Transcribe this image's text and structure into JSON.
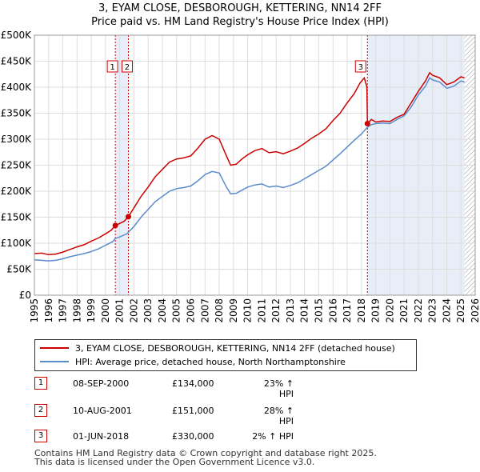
{
  "title_line1": "3, EYAM CLOSE, DESBOROUGH, KETTERING, NN14 2FF",
  "title_line2": "Price paid vs. HM Land Registry's House Price Index (HPI)",
  "colors": {
    "property": "#cc0000",
    "hpi": "#5b8ccc",
    "shade": "#e8eef8",
    "grid": "#dddddd",
    "marker_line": "#cc0000"
  },
  "chart_data": {
    "type": "line",
    "title": "",
    "xlabel": "",
    "ylabel": "",
    "xlim": [
      1995,
      2026
    ],
    "ylim": [
      0,
      500000
    ],
    "x_ticks": [
      "1995",
      "1996",
      "1997",
      "1998",
      "1999",
      "2000",
      "2001",
      "2002",
      "2003",
      "2004",
      "2005",
      "2006",
      "2007",
      "2008",
      "2009",
      "2010",
      "2011",
      "2012",
      "2013",
      "2014",
      "2015",
      "2016",
      "2017",
      "2018",
      "2019",
      "2020",
      "2021",
      "2022",
      "2023",
      "2024",
      "2025",
      "2026"
    ],
    "y_ticks": [
      {
        "value": 0,
        "label": "£0"
      },
      {
        "value": 50000,
        "label": "£50K"
      },
      {
        "value": 100000,
        "label": "£100K"
      },
      {
        "value": 150000,
        "label": "£150K"
      },
      {
        "value": 200000,
        "label": "£200K"
      },
      {
        "value": 250000,
        "label": "£250K"
      },
      {
        "value": 300000,
        "label": "£300K"
      },
      {
        "value": 350000,
        "label": "£350K"
      },
      {
        "value": 400000,
        "label": "£400K"
      },
      {
        "value": 450000,
        "label": "£450K"
      },
      {
        "value": 500000,
        "label": "£500K"
      }
    ],
    "grid": true,
    "shaded_spans": [
      [
        2000.69,
        2001.61
      ],
      [
        2018.42,
        2025.25
      ]
    ],
    "hatched_span": [
      2025.25,
      2026
    ],
    "series": [
      {
        "name": "3, EYAM CLOSE, DESBOROUGH, KETTERING, NN14 2FF (detached house)",
        "color": "#cc0000",
        "points": [
          [
            1995.0,
            80000
          ],
          [
            1995.5,
            81000
          ],
          [
            1996.0,
            78000
          ],
          [
            1996.5,
            79000
          ],
          [
            1997.0,
            83000
          ],
          [
            1997.5,
            88000
          ],
          [
            1998.0,
            93000
          ],
          [
            1998.5,
            97000
          ],
          [
            1999.0,
            104000
          ],
          [
            1999.5,
            110000
          ],
          [
            2000.0,
            118000
          ],
          [
            2000.4,
            125000
          ],
          [
            2000.69,
            134000
          ],
          [
            2001.0,
            138000
          ],
          [
            2001.3,
            142000
          ],
          [
            2001.61,
            151000
          ],
          [
            2002.0,
            168000
          ],
          [
            2002.5,
            190000
          ],
          [
            2003.0,
            208000
          ],
          [
            2003.5,
            228000
          ],
          [
            2004.0,
            242000
          ],
          [
            2004.5,
            256000
          ],
          [
            2005.0,
            262000
          ],
          [
            2005.5,
            264000
          ],
          [
            2006.0,
            268000
          ],
          [
            2006.5,
            283000
          ],
          [
            2007.0,
            300000
          ],
          [
            2007.5,
            307000
          ],
          [
            2008.0,
            300000
          ],
          [
            2008.5,
            268000
          ],
          [
            2008.8,
            250000
          ],
          [
            2009.2,
            252000
          ],
          [
            2009.6,
            262000
          ],
          [
            2010.0,
            270000
          ],
          [
            2010.5,
            278000
          ],
          [
            2011.0,
            282000
          ],
          [
            2011.5,
            274000
          ],
          [
            2012.0,
            276000
          ],
          [
            2012.5,
            272000
          ],
          [
            2013.0,
            277000
          ],
          [
            2013.5,
            283000
          ],
          [
            2014.0,
            292000
          ],
          [
            2014.5,
            302000
          ],
          [
            2015.0,
            310000
          ],
          [
            2015.5,
            320000
          ],
          [
            2016.0,
            336000
          ],
          [
            2016.5,
            350000
          ],
          [
            2017.0,
            370000
          ],
          [
            2017.5,
            388000
          ],
          [
            2017.9,
            408000
          ],
          [
            2018.2,
            418000
          ],
          [
            2018.38,
            400000
          ],
          [
            2018.42,
            330000
          ],
          [
            2018.7,
            338000
          ],
          [
            2019.0,
            333000
          ],
          [
            2019.5,
            335000
          ],
          [
            2020.0,
            334000
          ],
          [
            2020.5,
            342000
          ],
          [
            2021.0,
            348000
          ],
          [
            2021.5,
            370000
          ],
          [
            2022.0,
            392000
          ],
          [
            2022.5,
            412000
          ],
          [
            2022.8,
            428000
          ],
          [
            2023.0,
            423000
          ],
          [
            2023.5,
            418000
          ],
          [
            2024.0,
            405000
          ],
          [
            2024.5,
            410000
          ],
          [
            2025.0,
            420000
          ],
          [
            2025.25,
            418000
          ]
        ]
      },
      {
        "name": "HPI: Average price, detached house, North Northamptonshire",
        "color": "#5b8ccc",
        "points": [
          [
            1995.0,
            68000
          ],
          [
            1995.5,
            67000
          ],
          [
            1996.0,
            66000
          ],
          [
            1996.5,
            67000
          ],
          [
            1997.0,
            70000
          ],
          [
            1997.5,
            74000
          ],
          [
            1998.0,
            77000
          ],
          [
            1998.5,
            80000
          ],
          [
            1999.0,
            84000
          ],
          [
            1999.5,
            89000
          ],
          [
            2000.0,
            96000
          ],
          [
            2000.5,
            103000
          ],
          [
            2000.69,
            109000
          ],
          [
            2001.0,
            112000
          ],
          [
            2001.5,
            118000
          ],
          [
            2002.0,
            132000
          ],
          [
            2002.5,
            150000
          ],
          [
            2003.0,
            165000
          ],
          [
            2003.5,
            180000
          ],
          [
            2004.0,
            190000
          ],
          [
            2004.5,
            200000
          ],
          [
            2005.0,
            205000
          ],
          [
            2005.5,
            207000
          ],
          [
            2006.0,
            210000
          ],
          [
            2006.5,
            220000
          ],
          [
            2007.0,
            232000
          ],
          [
            2007.5,
            238000
          ],
          [
            2008.0,
            235000
          ],
          [
            2008.5,
            208000
          ],
          [
            2008.8,
            195000
          ],
          [
            2009.2,
            196000
          ],
          [
            2009.6,
            202000
          ],
          [
            2010.0,
            208000
          ],
          [
            2010.5,
            212000
          ],
          [
            2011.0,
            214000
          ],
          [
            2011.5,
            208000
          ],
          [
            2012.0,
            210000
          ],
          [
            2012.5,
            207000
          ],
          [
            2013.0,
            211000
          ],
          [
            2013.5,
            216000
          ],
          [
            2014.0,
            224000
          ],
          [
            2014.5,
            232000
          ],
          [
            2015.0,
            240000
          ],
          [
            2015.5,
            248000
          ],
          [
            2016.0,
            260000
          ],
          [
            2016.5,
            272000
          ],
          [
            2017.0,
            285000
          ],
          [
            2017.5,
            298000
          ],
          [
            2018.0,
            310000
          ],
          [
            2018.42,
            323000
          ],
          [
            2018.7,
            328000
          ],
          [
            2019.0,
            330000
          ],
          [
            2019.5,
            331000
          ],
          [
            2020.0,
            330000
          ],
          [
            2020.5,
            338000
          ],
          [
            2021.0,
            345000
          ],
          [
            2021.5,
            362000
          ],
          [
            2022.0,
            385000
          ],
          [
            2022.5,
            402000
          ],
          [
            2022.8,
            418000
          ],
          [
            2023.0,
            414000
          ],
          [
            2023.5,
            410000
          ],
          [
            2024.0,
            398000
          ],
          [
            2024.5,
            402000
          ],
          [
            2025.0,
            412000
          ],
          [
            2025.25,
            410000
          ]
        ]
      }
    ],
    "sales": [
      {
        "label": "1",
        "date": "08-SEP-2000",
        "x": 2000.69,
        "price": 134000,
        "price_text": "£134,000",
        "hpi_text": "23% ↑ HPI"
      },
      {
        "label": "2",
        "date": "10-AUG-2001",
        "x": 2001.61,
        "price": 151000,
        "price_text": "£151,000",
        "hpi_text": "28% ↑ HPI"
      },
      {
        "label": "3",
        "date": "01-JUN-2018",
        "x": 2018.42,
        "price": 330000,
        "price_text": "£330,000",
        "hpi_text": "2% ↑ HPI"
      }
    ]
  },
  "legend": {
    "property_label": "3, EYAM CLOSE, DESBOROUGH, KETTERING, NN14 2FF (detached house)",
    "hpi_label": "HPI: Average price, detached house, North Northamptonshire"
  },
  "footer": {
    "line1": "Contains HM Land Registry data © Crown copyright and database right 2025.",
    "line2": "This data is licensed under the Open Government Licence v3.0."
  }
}
